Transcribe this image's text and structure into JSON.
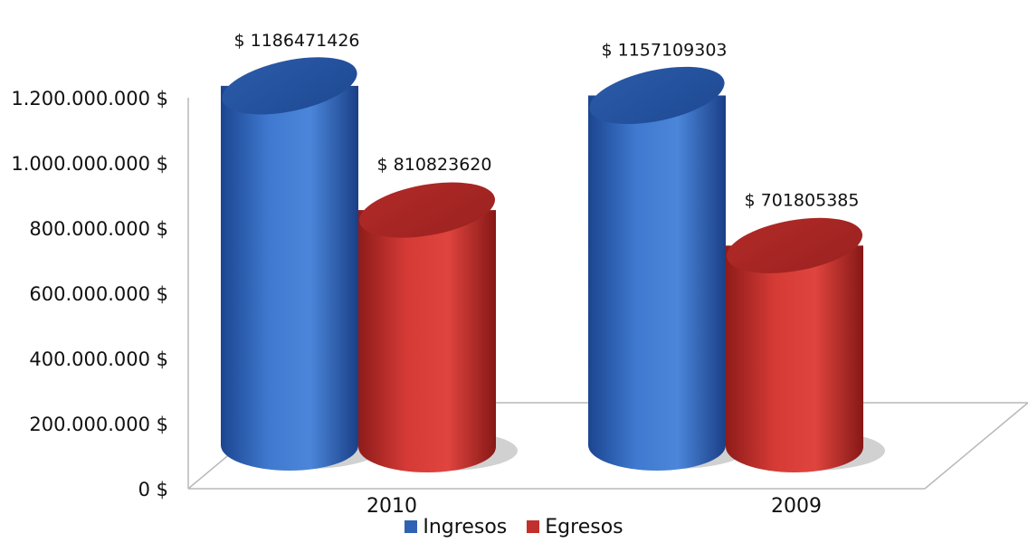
{
  "chart_data": {
    "type": "bar",
    "style": "3d-cylinder",
    "categories": [
      "2010",
      "2009"
    ],
    "series": [
      {
        "name": "Ingresos",
        "color": "#2f62b2",
        "values": [
          1186471426,
          1157109303
        ],
        "labels": [
          "$ 1186471426",
          "$ 1157109303"
        ]
      },
      {
        "name": "Egresos",
        "color": "#c0302c",
        "values": [
          810823620,
          701805385
        ],
        "labels": [
          "$ 810823620",
          "$ 701805385"
        ]
      }
    ],
    "yticks": [
      "0 $",
      "200.000.000 $",
      "400.000.000 $",
      "600.000.000 $",
      "800.000.000 $",
      "1.000.000.000 $",
      "1.200.000.000 $"
    ],
    "ylim": [
      0,
      1200000000
    ],
    "title": "",
    "xlabel": "",
    "ylabel": "",
    "legend_position": "bottom",
    "grid": false
  }
}
